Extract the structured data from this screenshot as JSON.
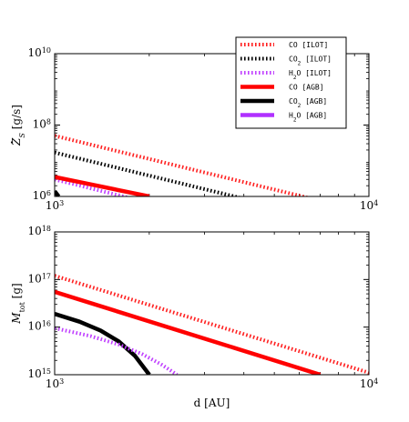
{
  "chart_data": [
    {
      "type": "line",
      "title": "",
      "xlabel": "",
      "ylabel": {
        "base": "Z",
        "sub": "S",
        "unit": "[g/s]"
      },
      "x_scale": "log",
      "y_scale": "log",
      "xlim": [
        1000,
        10000
      ],
      "ylim": [
        1000000,
        10000000000
      ],
      "x_ticks": [
        {
          "base": "10",
          "exp": "3"
        },
        {
          "base": "10",
          "exp": "4"
        }
      ],
      "y_ticks": [
        {
          "base": "10",
          "exp": "6"
        },
        {
          "base": "10",
          "exp": "8"
        },
        {
          "base": "10",
          "exp": "10"
        }
      ],
      "legend_position": "top-right",
      "series": [
        {
          "name": "CO [ILOT]",
          "label": {
            "pre": "CO",
            "sub": "",
            "post": " [ILOT]"
          },
          "color": "#ff2020",
          "style": "dotted-thick",
          "x": [
            1000,
            10000
          ],
          "y": [
            50000000,
            350000
          ]
        },
        {
          "name": "CO2 [ILOT]",
          "label": {
            "pre": "CO",
            "sub": "2",
            "post": " [ILOT]"
          },
          "color": "#000000",
          "style": "dotted-thick",
          "x": [
            1000,
            10000
          ],
          "y": [
            17000000,
            120000
          ]
        },
        {
          "name": "H2O [ILOT]",
          "label": {
            "pre": "H",
            "sub": "2",
            "post": "O [ILOT]"
          },
          "color": "#c040ff",
          "style": "dotted-thick",
          "x": [
            1000,
            10000
          ],
          "y": [
            3000000,
            20000
          ]
        },
        {
          "name": "CO [AGB]",
          "label": {
            "pre": "CO",
            "sub": "",
            "post": " [AGB]"
          },
          "color": "#ff0000",
          "style": "solid",
          "x": [
            1000,
            2000
          ],
          "y": [
            3500000,
            1000000
          ]
        },
        {
          "name": "CO2 [AGB]",
          "label": {
            "pre": "CO",
            "sub": "2",
            "post": " [AGB]"
          },
          "color": "#000000",
          "style": "solid",
          "x": [
            1000,
            1030
          ],
          "y": [
            1400000,
            1000000
          ]
        },
        {
          "name": "H2O [AGB]",
          "label": {
            "pre": "H",
            "sub": "2",
            "post": "O [AGB]"
          },
          "color": "#b030ff",
          "style": "solid",
          "x": [],
          "y": []
        }
      ]
    },
    {
      "type": "line",
      "title": "",
      "xlabel": "d [AU]",
      "ylabel": {
        "base": "M",
        "sub": "tot",
        "unit": "[g]"
      },
      "x_scale": "log",
      "y_scale": "log",
      "xlim": [
        1000,
        10000
      ],
      "ylim": [
        1000000000000000,
        1000000000000000000
      ],
      "x_ticks": [
        {
          "base": "10",
          "exp": "3"
        },
        {
          "base": "10",
          "exp": "4"
        }
      ],
      "y_ticks": [
        {
          "base": "10",
          "exp": "15"
        },
        {
          "base": "10",
          "exp": "16"
        },
        {
          "base": "10",
          "exp": "17"
        },
        {
          "base": "10",
          "exp": "18"
        }
      ],
      "series": [
        {
          "name": "CO [ILOT]",
          "color": "#ff2020",
          "style": "dotted-thick",
          "x": [
            1000,
            10000
          ],
          "y": [
            120000000000000000,
            1100000000000000
          ]
        },
        {
          "name": "CO [AGB]",
          "color": "#ff0000",
          "style": "solid",
          "x": [
            1000,
            7000
          ],
          "y": [
            55000000000000000,
            1000000000000000
          ]
        },
        {
          "name": "CO2 [AGB]",
          "color": "#000000",
          "style": "solid",
          "x": [
            1000,
            1200,
            1400,
            1600,
            1800,
            2000
          ],
          "y": [
            19000000000000000,
            13000000000000000,
            8500000000000000,
            5000000000000000,
            2500000000000000,
            1000000000000000
          ]
        },
        {
          "name": "H2O [AGB]",
          "color": "#c040ff",
          "style": "dotted-thick",
          "x": [
            1000,
            1300,
            1600,
            1900,
            2200,
            2450
          ],
          "y": [
            9500000000000000,
            6500000000000000,
            4300000000000000,
            2700000000000000,
            1600000000000000,
            1000000000000000
          ]
        }
      ]
    }
  ]
}
